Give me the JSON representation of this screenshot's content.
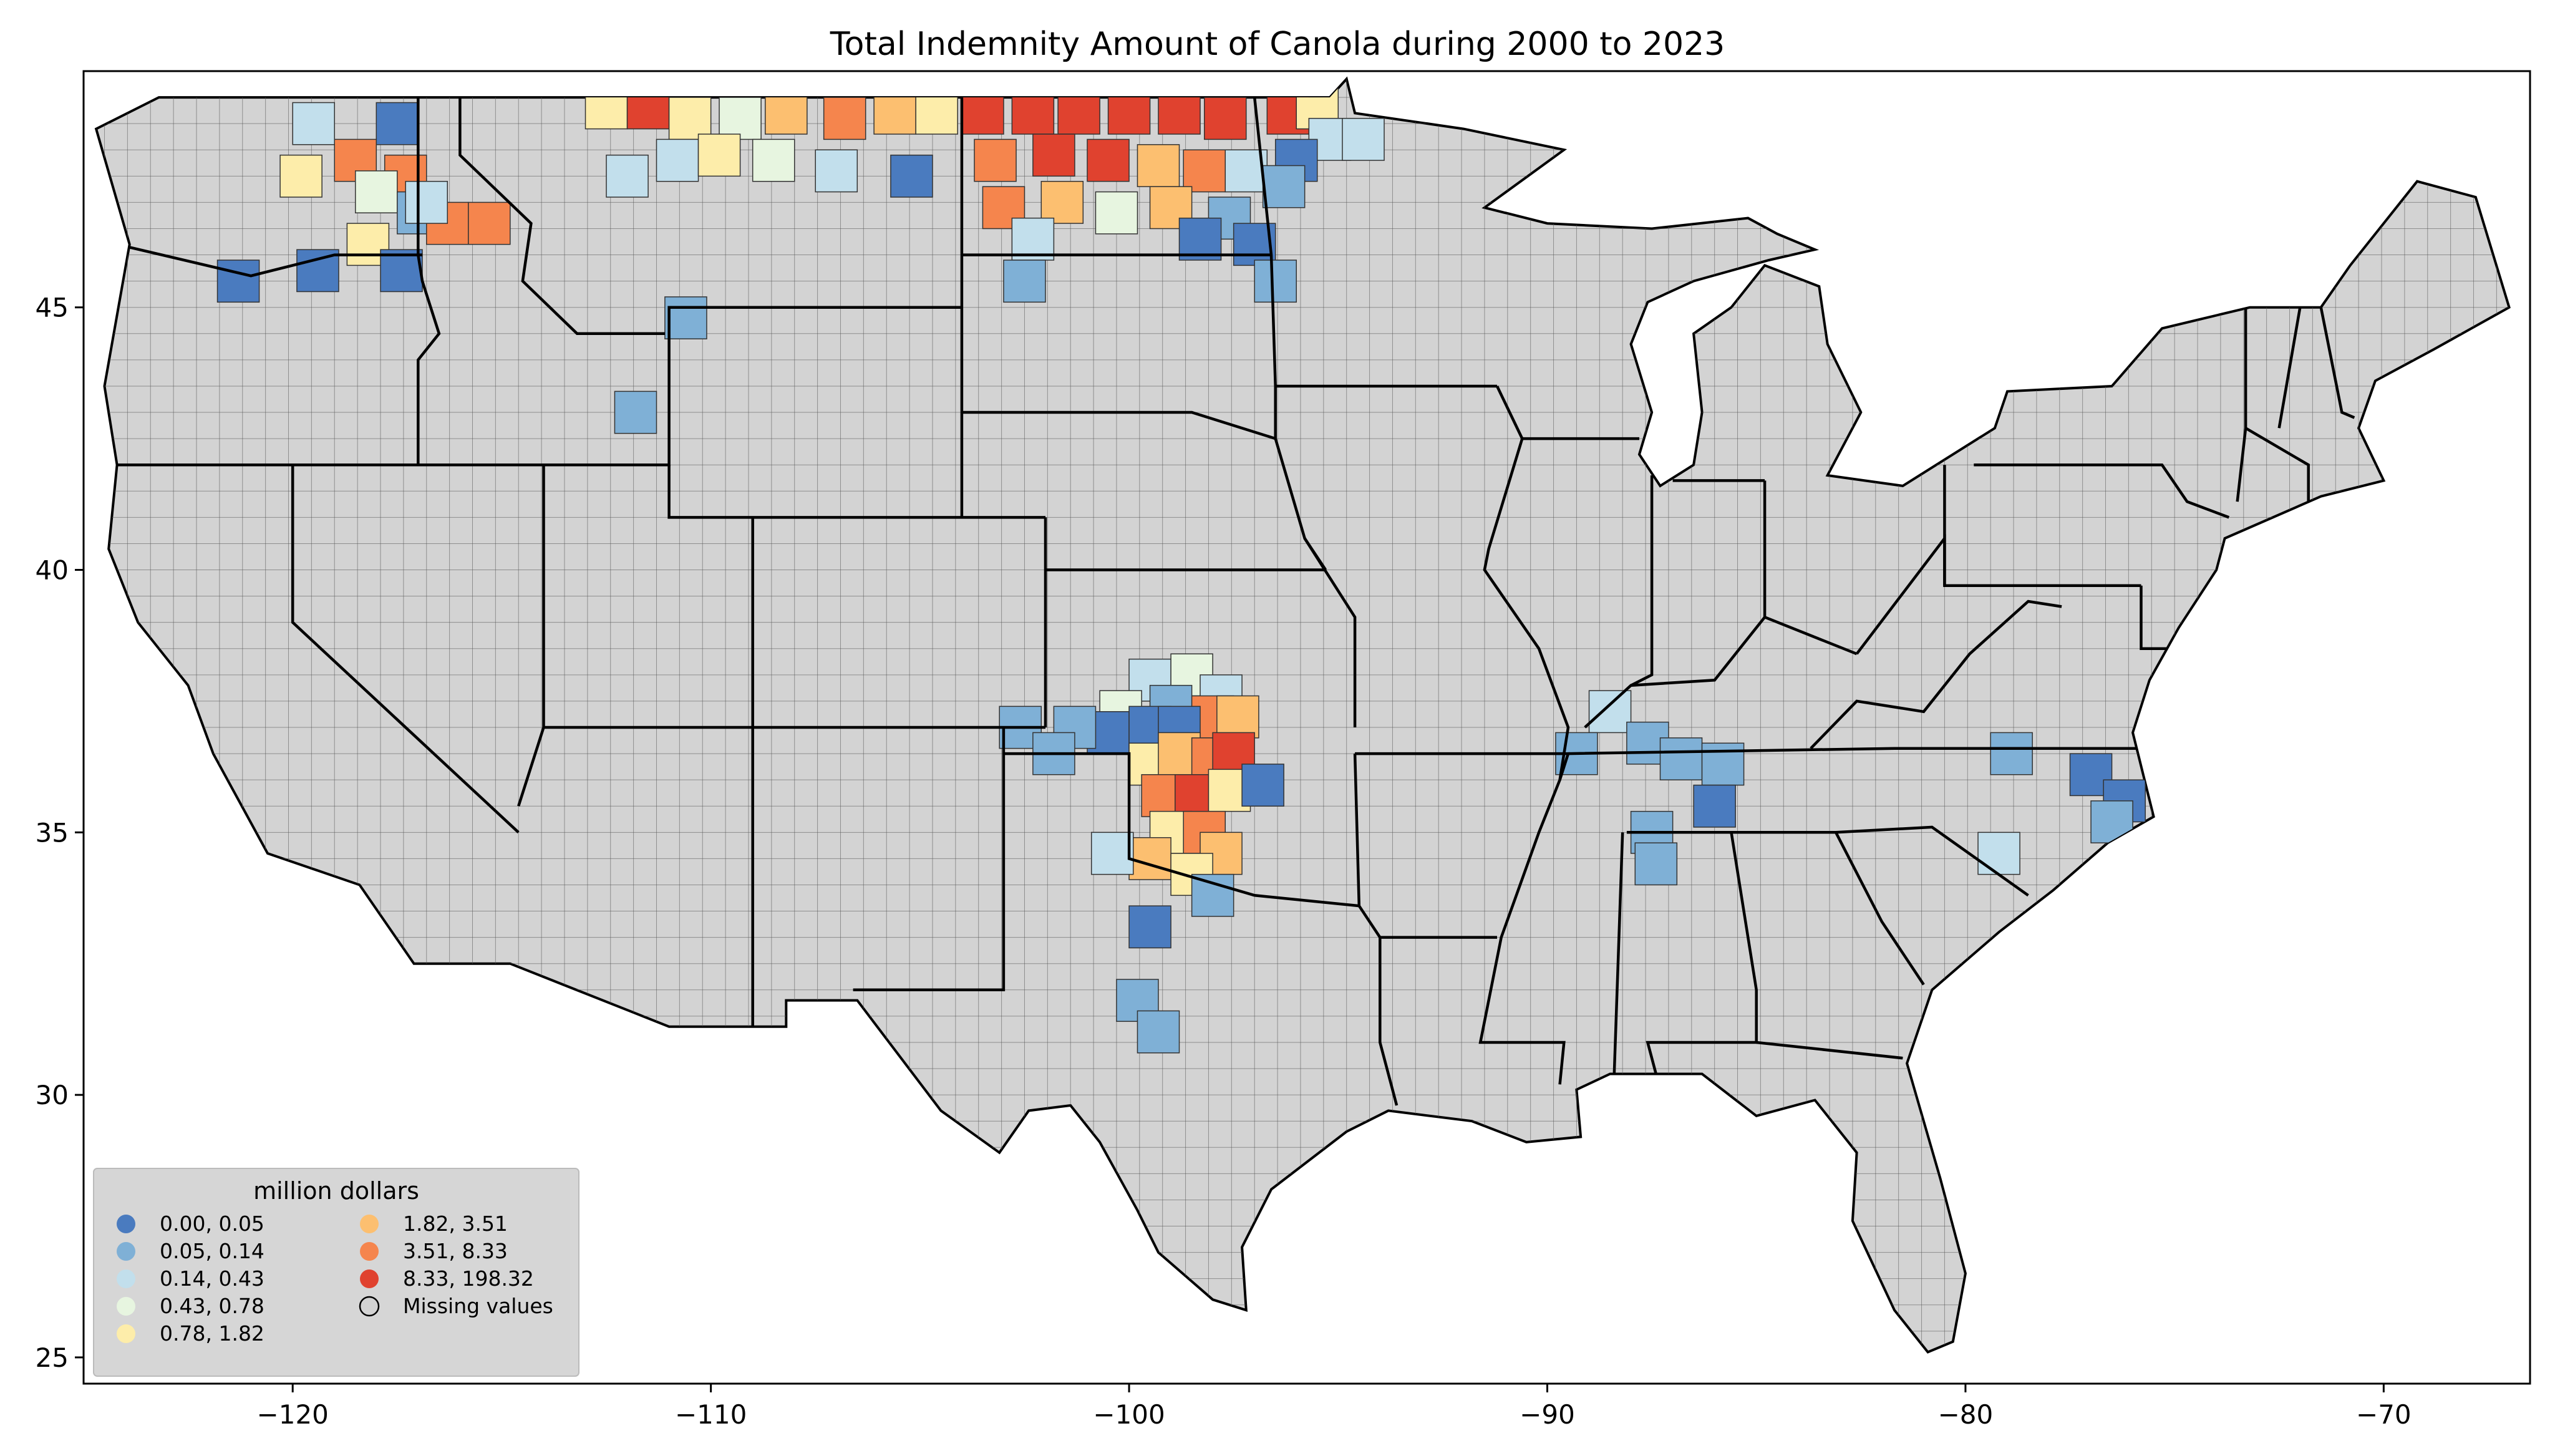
{
  "title": "Total Indemnity Amount of Canola during 2000 to 2023",
  "axes": {
    "x_ticks": [
      "−120",
      "−110",
      "−100",
      "−90",
      "−80",
      "−70"
    ],
    "y_ticks": [
      "25",
      "30",
      "35",
      "40",
      "45"
    ]
  },
  "legend": {
    "title": "million dollars",
    "placement": "lower-left",
    "entries": [
      {
        "label": "0.00,   0.05",
        "color": "#4a7bbf"
      },
      {
        "label": "0.05,   0.14",
        "color": "#7fb0d6"
      },
      {
        "label": "0.14,   0.43",
        "color": "#c2dfec"
      },
      {
        "label": "0.43,   0.78",
        "color": "#e7f5e0"
      },
      {
        "label": "0.78,   1.82",
        "color": "#fdedaa"
      },
      {
        "label": "1.82,   3.51",
        "color": "#fcbf70"
      },
      {
        "label": "3.51,   8.33",
        "color": "#f5854d"
      },
      {
        "label": "8.33, 198.32",
        "color": "#e0422f"
      },
      {
        "label": "Missing values",
        "color": "#d3d3d3"
      }
    ]
  },
  "map_data": {
    "extent": {
      "lon": [
        -125,
        -66.5
      ],
      "lat": [
        24.5,
        49.5
      ]
    },
    "missing_color": "#d3d3d3",
    "cells": [
      {
        "lon": -117.5,
        "lat": 48.5,
        "bin": 0
      },
      {
        "lon": -119.5,
        "lat": 48.5,
        "bin": 2
      },
      {
        "lon": -118.5,
        "lat": 47.8,
        "bin": 6
      },
      {
        "lon": -117.3,
        "lat": 47.5,
        "bin": 6
      },
      {
        "lon": -118.0,
        "lat": 47.2,
        "bin": 3
      },
      {
        "lon": -119.8,
        "lat": 47.5,
        "bin": 4
      },
      {
        "lon": -117.0,
        "lat": 46.8,
        "bin": 1
      },
      {
        "lon": -116.3,
        "lat": 46.6,
        "bin": 6
      },
      {
        "lon": -115.3,
        "lat": 46.6,
        "bin": 6
      },
      {
        "lon": -118.2,
        "lat": 46.2,
        "bin": 4
      },
      {
        "lon": -117.4,
        "lat": 45.7,
        "bin": 0
      },
      {
        "lon": -119.4,
        "lat": 45.7,
        "bin": 0
      },
      {
        "lon": -121.3,
        "lat": 45.5,
        "bin": 0
      },
      {
        "lon": -116.8,
        "lat": 47.0,
        "bin": 2
      },
      {
        "lon": -112.5,
        "lat": 48.8,
        "bin": 4
      },
      {
        "lon": -111.5,
        "lat": 48.8,
        "bin": 7
      },
      {
        "lon": -110.5,
        "lat": 48.6,
        "bin": 4
      },
      {
        "lon": -109.3,
        "lat": 48.6,
        "bin": 3
      },
      {
        "lon": -108.2,
        "lat": 48.7,
        "bin": 5
      },
      {
        "lon": -106.8,
        "lat": 48.6,
        "bin": 6
      },
      {
        "lon": -105.6,
        "lat": 48.7,
        "bin": 5
      },
      {
        "lon": -104.6,
        "lat": 48.7,
        "bin": 4
      },
      {
        "lon": -110.8,
        "lat": 47.8,
        "bin": 2
      },
      {
        "lon": -109.8,
        "lat": 47.9,
        "bin": 4
      },
      {
        "lon": -108.5,
        "lat": 47.8,
        "bin": 3
      },
      {
        "lon": -107.0,
        "lat": 47.6,
        "bin": 2
      },
      {
        "lon": -105.2,
        "lat": 47.5,
        "bin": 0
      },
      {
        "lon": -112.0,
        "lat": 47.5,
        "bin": 2
      },
      {
        "lon": -110.6,
        "lat": 44.8,
        "bin": 1
      },
      {
        "lon": -111.8,
        "lat": 43.0,
        "bin": 1
      },
      {
        "lon": -103.5,
        "lat": 48.7,
        "bin": 7
      },
      {
        "lon": -102.3,
        "lat": 48.7,
        "bin": 7
      },
      {
        "lon": -101.2,
        "lat": 48.7,
        "bin": 7
      },
      {
        "lon": -100.0,
        "lat": 48.7,
        "bin": 7
      },
      {
        "lon": -98.8,
        "lat": 48.7,
        "bin": 7
      },
      {
        "lon": -97.7,
        "lat": 48.6,
        "bin": 7
      },
      {
        "lon": -103.2,
        "lat": 47.8,
        "bin": 6
      },
      {
        "lon": -101.8,
        "lat": 47.9,
        "bin": 7
      },
      {
        "lon": -100.5,
        "lat": 47.8,
        "bin": 7
      },
      {
        "lon": -99.3,
        "lat": 47.7,
        "bin": 5
      },
      {
        "lon": -98.2,
        "lat": 47.6,
        "bin": 6
      },
      {
        "lon": -97.2,
        "lat": 47.6,
        "bin": 2
      },
      {
        "lon": -103.0,
        "lat": 46.9,
        "bin": 6
      },
      {
        "lon": -101.6,
        "lat": 47.0,
        "bin": 5
      },
      {
        "lon": -100.3,
        "lat": 46.8,
        "bin": 3
      },
      {
        "lon": -99.0,
        "lat": 46.9,
        "bin": 5
      },
      {
        "lon": -97.6,
        "lat": 46.7,
        "bin": 1
      },
      {
        "lon": -102.3,
        "lat": 46.3,
        "bin": 2
      },
      {
        "lon": -98.3,
        "lat": 46.3,
        "bin": 0
      },
      {
        "lon": -97.0,
        "lat": 46.2,
        "bin": 0
      },
      {
        "lon": -102.5,
        "lat": 45.5,
        "bin": 1
      },
      {
        "lon": -96.2,
        "lat": 48.7,
        "bin": 7
      },
      {
        "lon": -95.5,
        "lat": 48.8,
        "bin": 4
      },
      {
        "lon": -95.2,
        "lat": 48.2,
        "bin": 2
      },
      {
        "lon": -96.0,
        "lat": 47.8,
        "bin": 0
      },
      {
        "lon": -96.3,
        "lat": 47.3,
        "bin": 1
      },
      {
        "lon": -94.4,
        "lat": 48.2,
        "bin": 2
      },
      {
        "lon": -96.5,
        "lat": 45.5,
        "bin": 1
      },
      {
        "lon": -99.5,
        "lat": 37.9,
        "bin": 2
      },
      {
        "lon": -98.5,
        "lat": 38.0,
        "bin": 3
      },
      {
        "lon": -97.8,
        "lat": 37.6,
        "bin": 2
      },
      {
        "lon": -100.2,
        "lat": 37.3,
        "bin": 3
      },
      {
        "lon": -99.0,
        "lat": 37.4,
        "bin": 1
      },
      {
        "lon": -98.0,
        "lat": 37.2,
        "bin": 6
      },
      {
        "lon": -97.4,
        "lat": 37.2,
        "bin": 5
      },
      {
        "lon": -100.5,
        "lat": 36.9,
        "bin": 0
      },
      {
        "lon": -101.3,
        "lat": 37.0,
        "bin": 1
      },
      {
        "lon": -102.6,
        "lat": 37.0,
        "bin": 1
      },
      {
        "lon": -99.5,
        "lat": 37.0,
        "bin": 0
      },
      {
        "lon": -98.8,
        "lat": 37.0,
        "bin": 0
      },
      {
        "lon": -101.8,
        "lat": 36.5,
        "bin": 1
      },
      {
        "lon": -99.5,
        "lat": 36.3,
        "bin": 4
      },
      {
        "lon": -98.8,
        "lat": 36.5,
        "bin": 5
      },
      {
        "lon": -98.0,
        "lat": 36.4,
        "bin": 6
      },
      {
        "lon": -97.5,
        "lat": 36.5,
        "bin": 7
      },
      {
        "lon": -99.2,
        "lat": 35.7,
        "bin": 6
      },
      {
        "lon": -98.4,
        "lat": 35.7,
        "bin": 7
      },
      {
        "lon": -97.6,
        "lat": 35.8,
        "bin": 4
      },
      {
        "lon": -96.8,
        "lat": 35.9,
        "bin": 0
      },
      {
        "lon": -99.0,
        "lat": 35.0,
        "bin": 4
      },
      {
        "lon": -98.2,
        "lat": 35.0,
        "bin": 6
      },
      {
        "lon": -97.8,
        "lat": 34.6,
        "bin": 5
      },
      {
        "lon": -99.5,
        "lat": 34.5,
        "bin": 5
      },
      {
        "lon": -98.5,
        "lat": 34.2,
        "bin": 4
      },
      {
        "lon": -100.4,
        "lat": 34.6,
        "bin": 2
      },
      {
        "lon": -98.0,
        "lat": 33.8,
        "bin": 1
      },
      {
        "lon": -99.5,
        "lat": 33.2,
        "bin": 0
      },
      {
        "lon": -99.8,
        "lat": 31.8,
        "bin": 1
      },
      {
        "lon": -99.3,
        "lat": 31.2,
        "bin": 1
      },
      {
        "lon": -88.5,
        "lat": 37.3,
        "bin": 2
      },
      {
        "lon": -87.6,
        "lat": 36.7,
        "bin": 1
      },
      {
        "lon": -86.8,
        "lat": 36.4,
        "bin": 1
      },
      {
        "lon": -85.8,
        "lat": 36.3,
        "bin": 1
      },
      {
        "lon": -86.0,
        "lat": 35.5,
        "bin": 0
      },
      {
        "lon": -87.5,
        "lat": 35.0,
        "bin": 1
      },
      {
        "lon": -87.4,
        "lat": 34.4,
        "bin": 1
      },
      {
        "lon": -89.3,
        "lat": 36.5,
        "bin": 1
      },
      {
        "lon": -78.9,
        "lat": 36.5,
        "bin": 1
      },
      {
        "lon": -77.0,
        "lat": 36.1,
        "bin": 0
      },
      {
        "lon": -76.2,
        "lat": 35.6,
        "bin": 0
      },
      {
        "lon": -76.5,
        "lat": 35.2,
        "bin": 1
      },
      {
        "lon": -79.2,
        "lat": 34.6,
        "bin": 2
      }
    ]
  }
}
